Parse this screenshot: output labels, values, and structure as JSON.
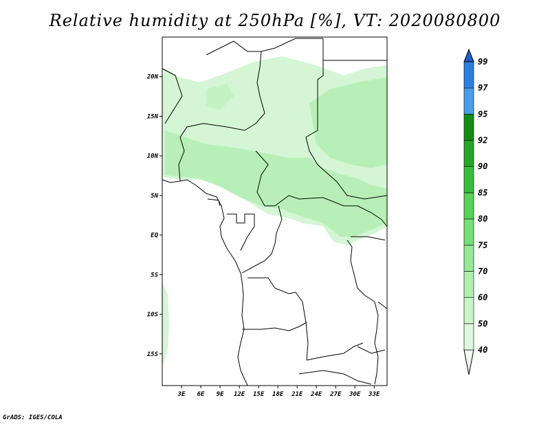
{
  "title": "Relative humidity at 250hPa [%], VT: 2020080800",
  "credit": "GrADS: IGES/COLA",
  "map": {
    "lat_ticks": [
      "20N",
      "15N",
      "10N",
      "5N",
      "EQ",
      "5S",
      "10S",
      "15S"
    ],
    "lon_ticks": [
      "3E",
      "6E",
      "9E",
      "12E",
      "15E",
      "18E",
      "21E",
      "24E",
      "27E",
      "30E",
      "33E"
    ]
  },
  "colorbar": {
    "levels": [
      "40",
      "50",
      "60",
      "70",
      "75",
      "80",
      "85",
      "90",
      "92",
      "95",
      "97",
      "99"
    ],
    "colors": [
      "#f0fdf0",
      "#dcf8dc",
      "#c8f4c8",
      "#aef0ae",
      "#96e896",
      "#78de78",
      "#5ad05a",
      "#3cbc3c",
      "#28a428",
      "#168c16",
      "#4a9ee8",
      "#2e7fe0",
      "#1a62c8"
    ]
  },
  "chart_data": {
    "type": "heatmap",
    "title": "Relative humidity at 250hPa [%], VT: 2020080800",
    "xlabel": "",
    "ylabel": "",
    "xlim": [
      0,
      35
    ],
    "ylim": [
      -19,
      25
    ],
    "x_ticks": [
      3,
      6,
      9,
      12,
      15,
      18,
      21,
      24,
      27,
      30,
      33
    ],
    "y_ticks": [
      20,
      15,
      10,
      5,
      0,
      -5,
      -10,
      -15
    ],
    "levels": [
      40,
      50,
      60,
      70,
      75,
      80,
      85,
      90,
      92,
      95,
      97,
      99
    ]
  }
}
